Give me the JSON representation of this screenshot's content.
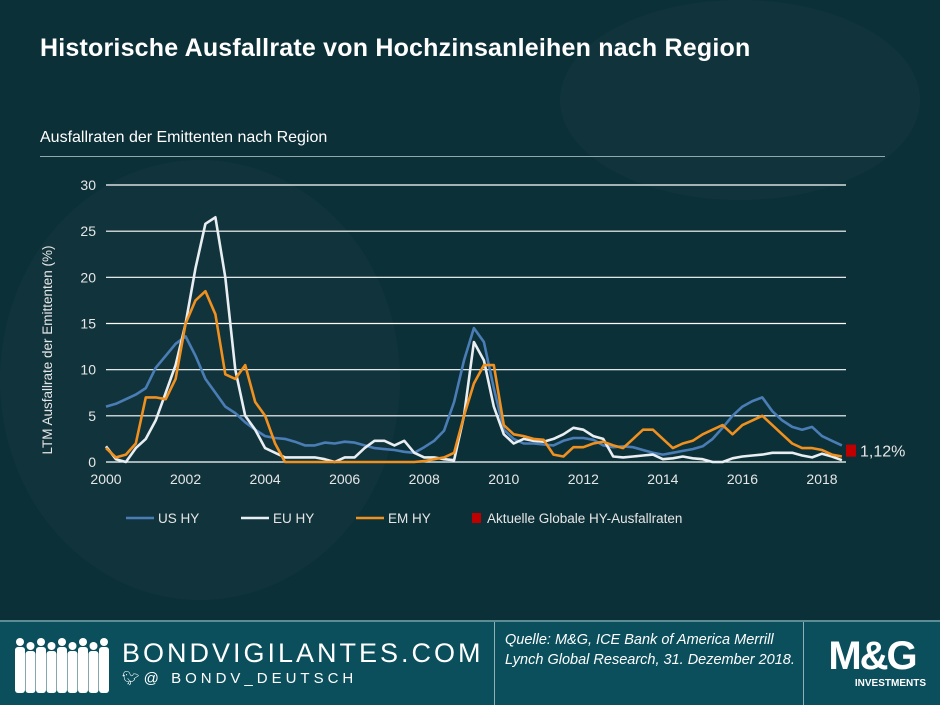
{
  "title": "Historische Ausfallrate von Hochzinsanleihen nach Region",
  "subtitle": "Ausfallraten der Emittenten nach Region",
  "colors": {
    "background": "#0c3038",
    "us": "#4a7db5",
    "eu": "#e8eef2",
    "em": "#f0901e",
    "current": "#c00000",
    "footer": "#0b4f5d"
  },
  "chart_data": {
    "type": "line",
    "title": "Ausfallraten der Emittenten nach Region",
    "ylabel": "LTM Ausfallrate der Emittenten (%)",
    "xlabel": "",
    "xlim": [
      2000,
      2018.9
    ],
    "ylim": [
      0,
      30
    ],
    "xticks": [
      "2000",
      "2002",
      "2004",
      "2006",
      "2008",
      "2010",
      "2012",
      "2014",
      "2016",
      "2018"
    ],
    "yticks": [
      "0",
      "5",
      "10",
      "15",
      "20",
      "25",
      "30"
    ],
    "grid": true,
    "legend_position": "bottom",
    "x": [
      2000,
      2000.25,
      2000.5,
      2000.75,
      2001,
      2001.25,
      2001.5,
      2001.75,
      2002,
      2002.25,
      2002.5,
      2002.75,
      2003,
      2003.25,
      2003.5,
      2003.75,
      2004,
      2004.25,
      2004.5,
      2004.75,
      2005,
      2005.25,
      2005.5,
      2005.75,
      2006,
      2006.25,
      2006.5,
      2006.75,
      2007,
      2007.25,
      2007.5,
      2007.75,
      2008,
      2008.25,
      2008.5,
      2008.75,
      2009,
      2009.25,
      2009.5,
      2009.75,
      2010,
      2010.25,
      2010.5,
      2010.75,
      2011,
      2011.25,
      2011.5,
      2011.75,
      2012,
      2012.25,
      2012.5,
      2012.75,
      2013,
      2013.25,
      2013.5,
      2013.75,
      2014,
      2014.25,
      2014.5,
      2014.75,
      2015,
      2015.25,
      2015.5,
      2015.75,
      2016,
      2016.25,
      2016.5,
      2016.75,
      2017,
      2017.25,
      2017.5,
      2017.75,
      2018,
      2018.25,
      2018.5
    ],
    "series": [
      {
        "name": "US HY",
        "color": "#4a7db5",
        "values": [
          6.0,
          6.3,
          6.8,
          7.3,
          8.0,
          10.2,
          11.5,
          12.8,
          13.6,
          11.5,
          9.0,
          7.5,
          6.0,
          5.3,
          4.3,
          3.5,
          2.8,
          2.6,
          2.5,
          2.2,
          1.8,
          1.8,
          2.1,
          2.0,
          2.2,
          2.1,
          1.8,
          1.5,
          1.4,
          1.3,
          1.1,
          1.0,
          1.6,
          2.3,
          3.4,
          6.5,
          11.0,
          14.5,
          13.0,
          8.0,
          3.5,
          2.5,
          2.0,
          2.0,
          1.9,
          1.8,
          2.3,
          2.6,
          2.6,
          2.4,
          1.8,
          1.6,
          1.7,
          1.6,
          1.3,
          1.0,
          0.8,
          1.0,
          1.2,
          1.4,
          1.7,
          2.5,
          3.7,
          5.0,
          6.0,
          6.6,
          7.0,
          5.5,
          4.5,
          3.8,
          3.5,
          3.8,
          2.8,
          2.3,
          1.8
        ]
      },
      {
        "name": "EU HY",
        "color": "#e8eef2",
        "values": [
          1.7,
          0.3,
          0.0,
          1.5,
          2.5,
          4.5,
          7.5,
          10.5,
          15.0,
          21.0,
          25.8,
          26.5,
          20.0,
          10.0,
          5.0,
          3.5,
          1.5,
          1.0,
          0.5,
          0.5,
          0.5,
          0.5,
          0.3,
          0.0,
          0.5,
          0.5,
          1.5,
          2.3,
          2.3,
          1.8,
          2.3,
          1.0,
          0.5,
          0.5,
          0.3,
          0.2,
          5.0,
          13.0,
          11.0,
          6.0,
          3.0,
          2.0,
          2.5,
          2.3,
          2.2,
          2.5,
          3.0,
          3.7,
          3.5,
          2.8,
          2.5,
          0.6,
          0.5,
          0.6,
          0.7,
          0.8,
          0.3,
          0.4,
          0.6,
          0.4,
          0.3,
          0.0,
          0.0,
          0.4,
          0.6,
          0.7,
          0.8,
          1.0,
          1.0,
          1.0,
          0.7,
          0.5,
          0.9,
          0.6,
          0.2
        ]
      },
      {
        "name": "EM HY",
        "color": "#f0901e",
        "values": [
          1.5,
          0.5,
          0.8,
          2.0,
          7.0,
          7.0,
          6.8,
          9.0,
          15.0,
          17.5,
          18.5,
          16.0,
          9.5,
          9.0,
          10.5,
          6.5,
          5.0,
          2.0,
          0,
          0,
          0,
          0,
          0,
          0,
          0,
          0,
          0,
          0,
          0,
          0,
          0,
          0,
          0.1,
          0.3,
          0.5,
          1.0,
          5.0,
          8.5,
          10.5,
          10.5,
          4.0,
          3.0,
          2.8,
          2.5,
          2.4,
          0.8,
          0.6,
          1.6,
          1.6,
          2.0,
          2.2,
          1.8,
          1.5,
          2.5,
          3.5,
          3.5,
          2.5,
          1.5,
          2.0,
          2.3,
          3.0,
          3.5,
          4.0,
          3.0,
          4.0,
          4.5,
          5.0,
          4.0,
          3.0,
          2.0,
          1.5,
          1.5,
          1.3,
          0.8,
          0.6
        ]
      }
    ],
    "current": {
      "name": "Aktuelle Globale HY-Ausfallraten",
      "value": 1.12,
      "label": "1,12%",
      "color": "#c00000"
    }
  },
  "footer": {
    "site": "BONDVIGILANTES.COM",
    "handle": "@ BONDV_DEUTSCH",
    "source": "Quelle: M&G, ICE Bank of America Merrill Lynch Global Research, 31. Dezember 2018.",
    "logo_text": "M&G",
    "logo_sub": "INVESTMENTS"
  }
}
